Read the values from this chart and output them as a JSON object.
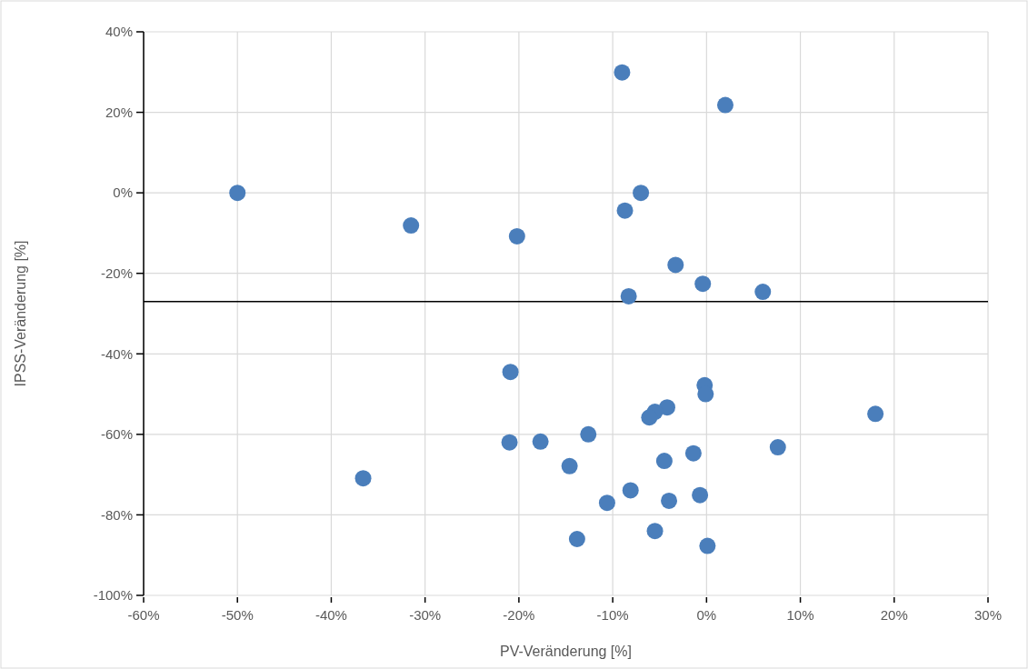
{
  "chart_data": {
    "type": "scatter",
    "xlabel": "PV-Veränderung [%]",
    "ylabel": "IPSS-Veränderung [%]",
    "xlim": [
      -60,
      30
    ],
    "ylim": [
      -100,
      40
    ],
    "xticks": [
      {
        "value": -60,
        "label": "-60%"
      },
      {
        "value": -50,
        "label": "-50%"
      },
      {
        "value": -40,
        "label": "-40%"
      },
      {
        "value": -30,
        "label": "-30%"
      },
      {
        "value": -20,
        "label": "-20%"
      },
      {
        "value": -10,
        "label": "-10%"
      },
      {
        "value": 0,
        "label": "0%"
      },
      {
        "value": 10,
        "label": "10%"
      },
      {
        "value": 20,
        "label": "20%"
      },
      {
        "value": 30,
        "label": "30%"
      }
    ],
    "yticks": [
      {
        "value": -100,
        "label": "-100%"
      },
      {
        "value": -80,
        "label": "-80%"
      },
      {
        "value": -60,
        "label": "-60%"
      },
      {
        "value": -40,
        "label": "-40%"
      },
      {
        "value": -20,
        "label": "-20%"
      },
      {
        "value": 0,
        "label": "0%"
      },
      {
        "value": 20,
        "label": "20%"
      },
      {
        "value": 40,
        "label": "40%"
      }
    ],
    "grid": true,
    "marker": "circle",
    "ref_lines": [
      {
        "axis": "y",
        "value": -27,
        "color": "#000000"
      }
    ],
    "series": [
      {
        "color": "#4a7ebb",
        "x": [
          -9.0,
          2.0,
          -50,
          -31.5,
          -20.2,
          -7.0,
          -8.7,
          -3.3,
          -0.4,
          6.0,
          -8.3,
          -20.9,
          -0.2,
          -0.1,
          -4.2,
          -5.5,
          -6.1,
          18.0,
          -21.0,
          -17.7,
          -12.6,
          -14.6,
          -4.5,
          -1.4,
          7.6,
          -36.6,
          -8.1,
          -10.6,
          -4.0,
          -0.7,
          -13.8,
          -5.5,
          0.1
        ],
        "values": [
          29.9,
          21.8,
          0,
          -8.1,
          -10.8,
          0,
          -4.4,
          -17.9,
          -22.6,
          -24.6,
          -25.7,
          -44.5,
          -47.8,
          -50.0,
          -53.3,
          -54.4,
          -55.8,
          -54.9,
          -62.0,
          -61.8,
          -60.0,
          -67.9,
          -66.6,
          -64.7,
          -63.2,
          -70.9,
          -73.9,
          -77.0,
          -76.5,
          -75.1,
          -86.0,
          -84.0,
          -87.7
        ]
      }
    ]
  }
}
